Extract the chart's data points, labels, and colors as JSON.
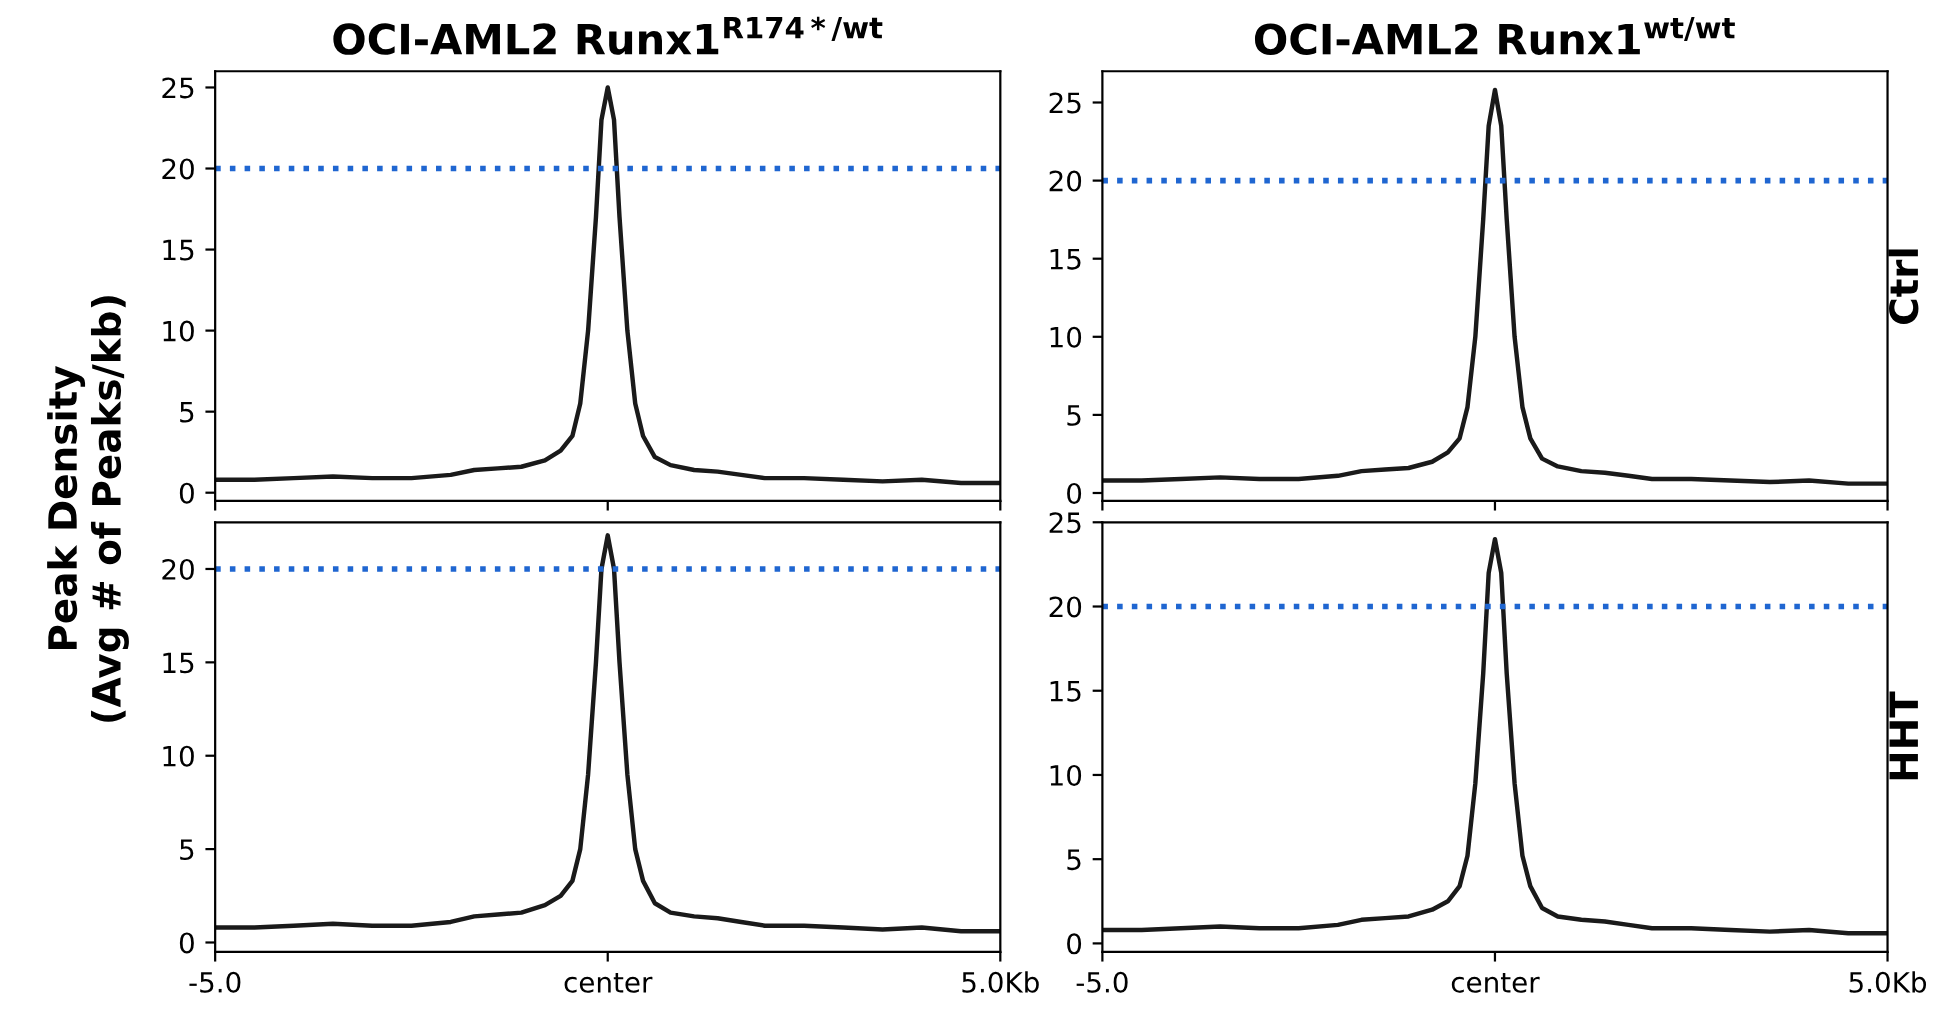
{
  "chart_data": [
    {
      "type": "line",
      "title": "OCI-AML2 Runx1$^{R174*/wt}$",
      "ylabel": "Peak Density\n(Avg # of Peaks/kb)",
      "xlim": [
        -5,
        5
      ],
      "xticks": [
        {
          "value": -5,
          "label": null
        },
        {
          "value": 0,
          "label": null
        },
        {
          "value": 5,
          "label": null
        }
      ],
      "ylim": [
        -0.5,
        26
      ],
      "yticks": [
        0,
        5,
        10,
        15,
        20,
        25
      ],
      "tick_labels": "y",
      "grid": false,
      "legend": false,
      "x": [
        -5,
        -4.5,
        -4,
        -3.5,
        -3,
        -2.5,
        -2,
        -1.7,
        -1.4,
        -1.1,
        -0.8,
        -0.6,
        -0.45,
        -0.35,
        -0.25,
        -0.15,
        -0.08,
        0,
        0.08,
        0.15,
        0.25,
        0.35,
        0.45,
        0.6,
        0.8,
        1.1,
        1.4,
        1.7,
        2,
        2.5,
        3,
        3.5,
        4,
        4.5,
        5
      ],
      "series": [
        {
          "color": "#1a1a1a",
          "values": [
            0.8,
            0.8,
            0.9,
            1.0,
            0.9,
            0.9,
            1.1,
            1.4,
            1.5,
            1.6,
            2.0,
            2.6,
            3.5,
            5.5,
            10,
            17,
            23,
            25,
            23,
            17,
            10,
            5.5,
            3.5,
            2.2,
            1.7,
            1.4,
            1.3,
            1.1,
            0.9,
            0.9,
            0.8,
            0.7,
            0.8,
            0.6,
            0.6
          ]
        }
      ],
      "ref_lines": [
        {
          "axis": "y",
          "value": 20,
          "color": "#1f66d1",
          "line_style": "dotted"
        }
      ]
    },
    {
      "type": "line",
      "title": "OCI-AML2 Runx1$^{wt/wt}$",
      "y2label": "Ctrl",
      "xlim": [
        -5,
        5
      ],
      "xticks": [
        {
          "value": -5,
          "label": null
        },
        {
          "value": 0,
          "label": null
        },
        {
          "value": 5,
          "label": null
        }
      ],
      "ylim": [
        -0.5,
        27
      ],
      "yticks": [
        0,
        5,
        10,
        15,
        20,
        25
      ],
      "tick_labels": "y",
      "grid": false,
      "legend": false,
      "x": [
        -5,
        -4.5,
        -4,
        -3.5,
        -3,
        -2.5,
        -2,
        -1.7,
        -1.4,
        -1.1,
        -0.8,
        -0.6,
        -0.45,
        -0.35,
        -0.25,
        -0.15,
        -0.08,
        0,
        0.08,
        0.15,
        0.25,
        0.35,
        0.45,
        0.6,
        0.8,
        1.1,
        1.4,
        1.7,
        2,
        2.5,
        3,
        3.5,
        4,
        4.5,
        5
      ],
      "series": [
        {
          "color": "#1a1a1a",
          "values": [
            0.8,
            0.8,
            0.9,
            1.0,
            0.9,
            0.9,
            1.1,
            1.4,
            1.5,
            1.6,
            2.0,
            2.6,
            3.5,
            5.5,
            10,
            17.5,
            23.5,
            25.8,
            23.5,
            17.5,
            10,
            5.5,
            3.5,
            2.2,
            1.7,
            1.4,
            1.3,
            1.1,
            0.9,
            0.9,
            0.8,
            0.7,
            0.8,
            0.6,
            0.6
          ]
        }
      ],
      "ref_lines": [
        {
          "axis": "y",
          "value": 20,
          "color": "#1f66d1",
          "line_style": "dotted"
        }
      ]
    },
    {
      "type": "line",
      "xlim": [
        -5,
        5
      ],
      "xticks": [
        {
          "value": -5,
          "label": "-5.0"
        },
        {
          "value": 0,
          "label": "center"
        },
        {
          "value": 5,
          "label": "5.0Kb"
        }
      ],
      "ylim": [
        -0.5,
        22.5
      ],
      "yticks": [
        0,
        5,
        10,
        15,
        20
      ],
      "grid": false,
      "legend": false,
      "x": [
        -5,
        -4.5,
        -4,
        -3.5,
        -3,
        -2.5,
        -2,
        -1.7,
        -1.4,
        -1.1,
        -0.8,
        -0.6,
        -0.45,
        -0.35,
        -0.25,
        -0.15,
        -0.08,
        0,
        0.08,
        0.15,
        0.25,
        0.35,
        0.45,
        0.6,
        0.8,
        1.1,
        1.4,
        1.7,
        2,
        2.5,
        3,
        3.5,
        4,
        4.5,
        5
      ],
      "series": [
        {
          "color": "#1a1a1a",
          "values": [
            0.8,
            0.8,
            0.9,
            1.0,
            0.9,
            0.9,
            1.1,
            1.4,
            1.5,
            1.6,
            2.0,
            2.5,
            3.3,
            5,
            9,
            15,
            20,
            21.8,
            20,
            15,
            9,
            5,
            3.3,
            2.1,
            1.6,
            1.4,
            1.3,
            1.1,
            0.9,
            0.9,
            0.8,
            0.7,
            0.8,
            0.6,
            0.6
          ]
        }
      ],
      "ref_lines": [
        {
          "axis": "y",
          "value": 20,
          "color": "#1f66d1",
          "line_style": "dotted"
        }
      ]
    },
    {
      "type": "line",
      "y2label": "HHT",
      "xlim": [
        -5,
        5
      ],
      "xticks": [
        {
          "value": -5,
          "label": "-5.0"
        },
        {
          "value": 0,
          "label": "center"
        },
        {
          "value": 5,
          "label": "5.0Kb"
        }
      ],
      "ylim": [
        -0.5,
        25
      ],
      "yticks": [
        0,
        5,
        10,
        15,
        20,
        25
      ],
      "grid": false,
      "legend": false,
      "x": [
        -5,
        -4.5,
        -4,
        -3.5,
        -3,
        -2.5,
        -2,
        -1.7,
        -1.4,
        -1.1,
        -0.8,
        -0.6,
        -0.45,
        -0.35,
        -0.25,
        -0.15,
        -0.08,
        0,
        0.08,
        0.15,
        0.25,
        0.35,
        0.45,
        0.6,
        0.8,
        1.1,
        1.4,
        1.7,
        2,
        2.5,
        3,
        3.5,
        4,
        4.5,
        5
      ],
      "series": [
        {
          "color": "#1a1a1a",
          "values": [
            0.8,
            0.8,
            0.9,
            1.0,
            0.9,
            0.9,
            1.1,
            1.4,
            1.5,
            1.6,
            2.0,
            2.5,
            3.4,
            5.2,
            9.5,
            16,
            22,
            24,
            22,
            16,
            9.5,
            5.2,
            3.4,
            2.1,
            1.6,
            1.4,
            1.3,
            1.1,
            0.9,
            0.9,
            0.8,
            0.7,
            0.8,
            0.6,
            0.6
          ]
        }
      ],
      "ref_lines": [
        {
          "axis": "y",
          "value": 20,
          "color": "#1f66d1",
          "line_style": "dotted"
        }
      ]
    }
  ]
}
